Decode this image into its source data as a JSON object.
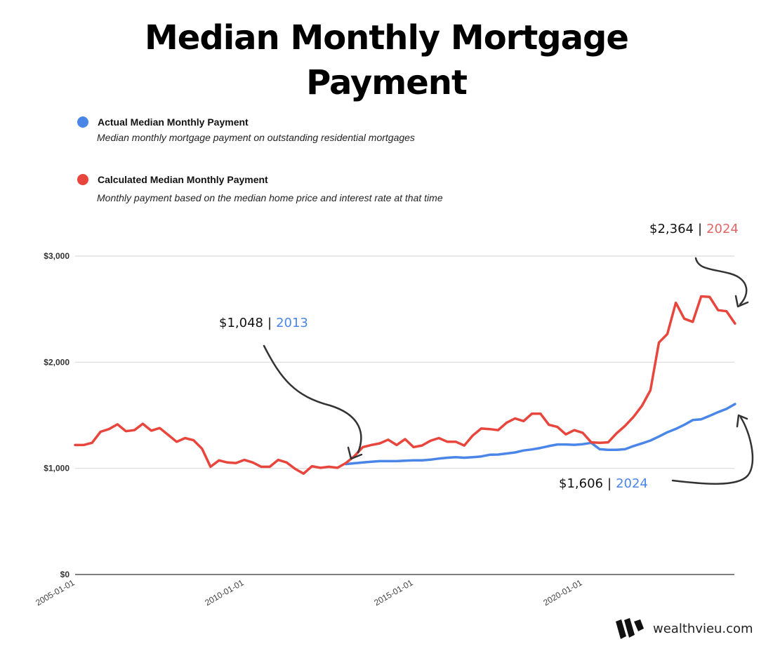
{
  "title": {
    "line1": "Median Monthly Mortgage",
    "line2": "Payment"
  },
  "legend": [
    {
      "label": "Actual Median Monthly Payment",
      "description": "Median monthly mortgage payment on outstanding residential mortgages",
      "color": "#4a86e8"
    },
    {
      "label": "Calculated Median Monthly Payment",
      "description": "Monthly payment based on the median home price and interest rate at that time",
      "color": "#e8453c"
    }
  ],
  "annotations": [
    {
      "value": "$1,048",
      "separator": "|",
      "year": "2013",
      "year_color": "#4a86e8"
    },
    {
      "value": "$2,364",
      "separator": "|",
      "year": "2024",
      "year_color": "#e06666"
    },
    {
      "value": "$1,606",
      "separator": "|",
      "year": "2024",
      "year_color": "#4a86e8"
    }
  ],
  "brand": {
    "name": "wealthvieu.com"
  },
  "chart_data": {
    "type": "line",
    "title": "Median Monthly Mortgage Payment",
    "xlabel": "",
    "ylabel": "",
    "ylim": [
      0,
      3000
    ],
    "y_ticks": [
      "$0",
      "$1,000",
      "$2,000",
      "$3,000"
    ],
    "y_tick_values": [
      0,
      1000,
      2000,
      3000
    ],
    "x_ticks": [
      "2005-01-01",
      "2010-01-01",
      "2015-01-01",
      "2020-01-01"
    ],
    "x_tick_index": [
      0,
      20,
      40,
      60
    ],
    "x_start": "2005-01-01",
    "x_frequency": "quarterly",
    "grid": true,
    "legend_position": "top-left",
    "series": [
      {
        "name": "Calculated Median Monthly Payment",
        "color": "#e8453c",
        "start_index": 0,
        "values": [
          1220,
          1220,
          1240,
          1345,
          1370,
          1415,
          1350,
          1360,
          1420,
          1355,
          1380,
          1315,
          1250,
          1285,
          1265,
          1185,
          1015,
          1075,
          1055,
          1050,
          1080,
          1055,
          1015,
          1015,
          1080,
          1055,
          995,
          950,
          1020,
          1005,
          1015,
          1005,
          1050,
          1115,
          1200,
          1220,
          1235,
          1270,
          1220,
          1275,
          1200,
          1215,
          1260,
          1285,
          1250,
          1250,
          1215,
          1310,
          1375,
          1370,
          1360,
          1430,
          1470,
          1445,
          1515,
          1515,
          1410,
          1390,
          1320,
          1360,
          1335,
          1245,
          1240,
          1245,
          1330,
          1400,
          1485,
          1590,
          1735,
          2185,
          2265,
          2560,
          2410,
          2380,
          2620,
          2615,
          2490,
          2480,
          2364
        ]
      },
      {
        "name": "Actual Median Monthly Payment",
        "color": "#4a86e8",
        "start_index": 32,
        "values": [
          1040,
          1048,
          1055,
          1062,
          1068,
          1068,
          1068,
          1072,
          1075,
          1075,
          1082,
          1092,
          1100,
          1105,
          1100,
          1105,
          1112,
          1128,
          1130,
          1140,
          1150,
          1168,
          1178,
          1192,
          1210,
          1225,
          1225,
          1222,
          1228,
          1240,
          1180,
          1175,
          1175,
          1180,
          1210,
          1235,
          1262,
          1300,
          1340,
          1372,
          1410,
          1455,
          1462,
          1495,
          1530,
          1560,
          1606
        ]
      }
    ],
    "annotations": [
      {
        "text": "$1,048 | 2013",
        "series": "Actual Median Monthly Payment"
      },
      {
        "text": "$2,364 | 2024",
        "series": "Calculated Median Monthly Payment"
      },
      {
        "text": "$1,606 | 2024",
        "series": "Actual Median Monthly Payment"
      }
    ]
  }
}
